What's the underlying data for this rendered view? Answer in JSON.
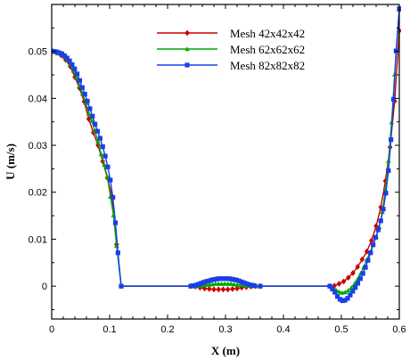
{
  "chart_data": {
    "type": "line",
    "xlabel": "X (m)",
    "ylabel": "U (m/s)",
    "xlim": [
      0,
      0.6
    ],
    "ylim": [
      -0.007,
      0.06
    ],
    "xticks": [
      0,
      0.1,
      0.2,
      0.3,
      0.4,
      0.5,
      0.6
    ],
    "yticks": [
      0,
      0.01,
      0.02,
      0.03,
      0.04,
      0.05
    ],
    "xtick_labels": [
      "0",
      "0.1",
      "0.2",
      "0.3",
      "0.4",
      "0.5",
      "0.6"
    ],
    "ytick_labels": [
      "0",
      "0.01",
      "0.02",
      "0.03",
      "0.04",
      "0.05"
    ],
    "grid": false,
    "legend_position": "top-center",
    "series": [
      {
        "name": "Mesh 42x42x42",
        "color": "#cc0000",
        "marker": "diamond",
        "x": [
          0,
          0.008,
          0.016,
          0.024,
          0.032,
          0.04,
          0.048,
          0.056,
          0.064,
          0.072,
          0.08,
          0.088,
          0.096,
          0.104,
          0.112,
          0.12,
          0.24,
          0.248,
          0.256,
          0.264,
          0.272,
          0.28,
          0.288,
          0.296,
          0.304,
          0.312,
          0.32,
          0.328,
          0.336,
          0.344,
          0.352,
          0.36,
          0.48,
          0.488,
          0.496,
          0.504,
          0.512,
          0.52,
          0.528,
          0.536,
          0.544,
          0.552,
          0.56,
          0.568,
          0.576,
          0.584,
          0.592,
          0.6
        ],
        "y": [
          0.0499,
          0.0497,
          0.0492,
          0.0482,
          0.0468,
          0.0445,
          0.0422,
          0.0393,
          0.0356,
          0.0327,
          0.03,
          0.0266,
          0.0231,
          0.0192,
          0.0089,
          0,
          0,
          -0.0001,
          -0.0003,
          -0.0005,
          -0.0006,
          -0.0007,
          -0.0007,
          -0.0007,
          -0.0007,
          -0.0006,
          -0.0005,
          -0.0003,
          -0.0002,
          -0.0001,
          0,
          0,
          0,
          0.0001,
          0.0005,
          0.001,
          0.0018,
          0.0028,
          0.0041,
          0.0057,
          0.0074,
          0.0097,
          0.0128,
          0.0168,
          0.0224,
          0.0296,
          0.0394,
          0.0544
        ]
      },
      {
        "name": "Mesh 62x62x62",
        "color": "#00aa00",
        "marker": "triangle",
        "x": [
          0,
          0.0053,
          0.0107,
          0.016,
          0.0213,
          0.0267,
          0.032,
          0.0373,
          0.0427,
          0.048,
          0.0533,
          0.0587,
          0.064,
          0.0693,
          0.0747,
          0.08,
          0.0853,
          0.0907,
          0.096,
          0.1013,
          0.1067,
          0.112,
          0.12,
          0.24,
          0.2453,
          0.2507,
          0.256,
          0.2613,
          0.2667,
          0.272,
          0.2773,
          0.2827,
          0.288,
          0.2933,
          0.2987,
          0.304,
          0.3093,
          0.3147,
          0.32,
          0.3253,
          0.3307,
          0.336,
          0.3413,
          0.3467,
          0.352,
          0.36,
          0.48,
          0.4853,
          0.4907,
          0.496,
          0.5013,
          0.5067,
          0.512,
          0.5173,
          0.5227,
          0.528,
          0.5333,
          0.5387,
          0.544,
          0.5493,
          0.5547,
          0.56,
          0.5653,
          0.5707,
          0.576,
          0.5813,
          0.5867,
          0.592,
          0.6
        ],
        "y": [
          0.05,
          0.0499,
          0.0497,
          0.0494,
          0.0489,
          0.0482,
          0.0472,
          0.0459,
          0.0444,
          0.0427,
          0.041,
          0.039,
          0.0368,
          0.0352,
          0.033,
          0.0308,
          0.0281,
          0.0259,
          0.0233,
          0.0191,
          0.0151,
          0.0086,
          0,
          0,
          0,
          0,
          0.0001,
          0.0002,
          0.0003,
          0.0003,
          0.0004,
          0.0005,
          0.0005,
          0.0005,
          0.0005,
          0.0005,
          0.0005,
          0.0004,
          0.0003,
          0.0003,
          0.0002,
          0.0001,
          0.0001,
          0,
          0,
          0,
          0,
          -0.0003,
          -0.0008,
          -0.0012,
          -0.0014,
          -0.0013,
          -0.0009,
          -0.0003,
          0.0005,
          0.0015,
          0.0027,
          0.0041,
          0.0056,
          0.0072,
          0.0088,
          0.0105,
          0.0126,
          0.0158,
          0.0205,
          0.0267,
          0.0349,
          0.0451,
          0.0589
        ]
      },
      {
        "name": "Mesh 82x82x82",
        "color": "#1a3ee8",
        "marker": "square",
        "x": [
          0,
          0.0044,
          0.0088,
          0.0132,
          0.0176,
          0.022,
          0.0264,
          0.0308,
          0.0352,
          0.0396,
          0.044,
          0.0484,
          0.0528,
          0.0572,
          0.0616,
          0.066,
          0.0704,
          0.0748,
          0.0792,
          0.0836,
          0.088,
          0.0924,
          0.0968,
          0.1012,
          0.1056,
          0.11,
          0.1144,
          0.12,
          0.24,
          0.2444,
          0.2488,
          0.2532,
          0.2576,
          0.262,
          0.2664,
          0.2708,
          0.2752,
          0.2796,
          0.284,
          0.2884,
          0.2928,
          0.2972,
          0.3016,
          0.306,
          0.3104,
          0.3148,
          0.3192,
          0.3236,
          0.328,
          0.3324,
          0.3368,
          0.3412,
          0.3456,
          0.35,
          0.36,
          0.48,
          0.4844,
          0.4888,
          0.4932,
          0.4976,
          0.502,
          0.5064,
          0.5108,
          0.5152,
          0.5196,
          0.524,
          0.5284,
          0.5328,
          0.5372,
          0.5416,
          0.546,
          0.5504,
          0.5548,
          0.5592,
          0.5636,
          0.568,
          0.5724,
          0.5768,
          0.5812,
          0.5856,
          0.59,
          0.5944,
          0.6
        ],
        "y": [
          0.0501,
          0.05,
          0.0499,
          0.0497,
          0.0495,
          0.0491,
          0.0486,
          0.048,
          0.0472,
          0.0463,
          0.0452,
          0.0438,
          0.0423,
          0.0409,
          0.0394,
          0.0378,
          0.0362,
          0.0345,
          0.033,
          0.0315,
          0.0297,
          0.0277,
          0.0254,
          0.0226,
          0.0189,
          0.0135,
          0.0071,
          0,
          0,
          0.0001,
          0.0002,
          0.0004,
          0.0006,
          0.0008,
          0.001,
          0.0011,
          0.0013,
          0.0014,
          0.0015,
          0.0016,
          0.0016,
          0.0016,
          0.0016,
          0.0016,
          0.0015,
          0.0014,
          0.0013,
          0.0011,
          0.0009,
          0.0007,
          0.0005,
          0.0003,
          0.0002,
          0.0001,
          0,
          0,
          -0.0006,
          -0.0013,
          -0.0022,
          -0.0028,
          -0.0031,
          -0.003,
          -0.0026,
          -0.0019,
          -0.0011,
          -0.0003,
          0.0006,
          0.0016,
          0.0027,
          0.004,
          0.0055,
          0.0071,
          0.0088,
          0.0104,
          0.012,
          0.0139,
          0.0164,
          0.0198,
          0.0246,
          0.0312,
          0.0398,
          0.0501,
          0.0591
        ]
      }
    ]
  }
}
